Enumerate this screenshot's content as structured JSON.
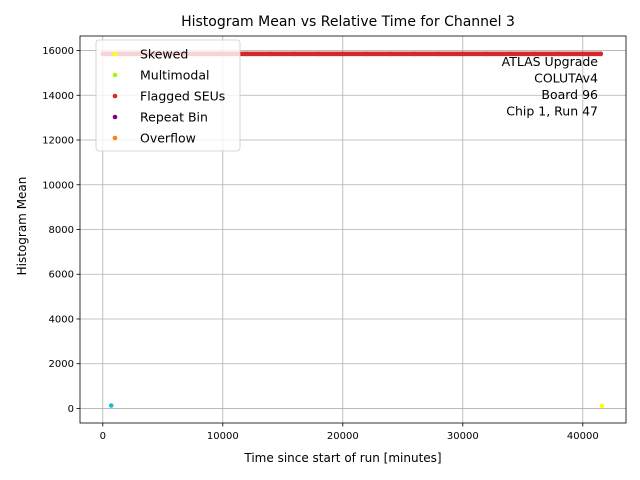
{
  "chart_data": {
    "type": "scatter",
    "title": "Histogram Mean vs Relative Time for Channel 3",
    "xlabel": "Time since start of run [minutes]",
    "ylabel": "Histogram Mean",
    "xlim": [
      -1900,
      43600
    ],
    "ylim": [
      -650,
      16650
    ],
    "xticks": [
      0,
      10000,
      20000,
      30000,
      40000
    ],
    "yticks": [
      0,
      2000,
      4000,
      6000,
      8000,
      10000,
      12000,
      14000,
      16000
    ],
    "grid": true,
    "legend_position": "upper-left",
    "series": [
      {
        "name": "Skewed",
        "color": "#ffff00",
        "x": [
          41600
        ],
        "y": [
          120
        ]
      },
      {
        "name": "Multimodal",
        "color": "#9cff00",
        "x": [],
        "y": []
      },
      {
        "name": "Flagged SEUs",
        "color": "#d62728",
        "x": [
          0,
          2000,
          4000,
          6000,
          8000,
          10000,
          12000,
          14000,
          16000,
          18000,
          20000,
          22000,
          24000,
          26000,
          28000,
          30000,
          32000,
          34000,
          36000,
          38000,
          40000,
          41500
        ],
        "y": [
          15850,
          15850,
          15850,
          15850,
          15850,
          15850,
          15850,
          15850,
          15850,
          15850,
          15850,
          15850,
          15850,
          15850,
          15850,
          15850,
          15850,
          15850,
          15850,
          15850,
          15850,
          15850
        ]
      },
      {
        "name": "Repeat Bin",
        "color": "#800080",
        "x": [],
        "y": []
      },
      {
        "name": "Overflow",
        "color": "#ff7f0e",
        "x": [],
        "y": []
      },
      {
        "name": "",
        "color": "#17becf",
        "x": [
          700
        ],
        "y": [
          130
        ]
      }
    ],
    "annotation": [
      "ATLAS Upgrade",
      "COLUTAv4",
      "Board 96",
      "Chip 1, Run 47"
    ]
  }
}
